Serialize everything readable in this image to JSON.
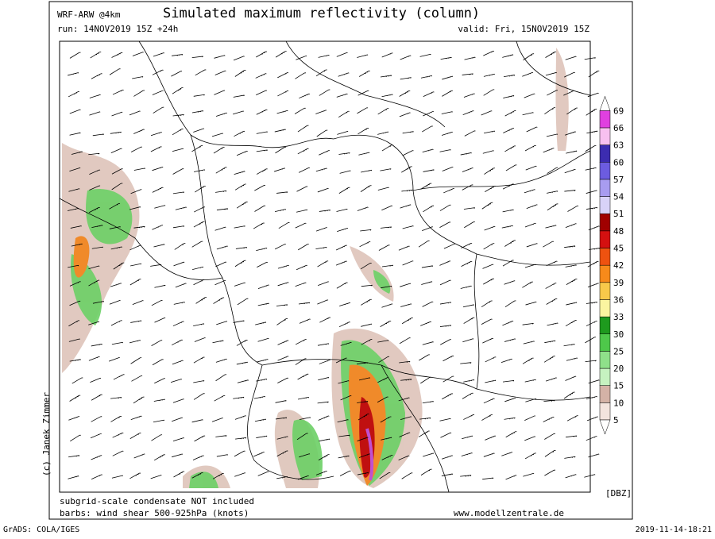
{
  "header": {
    "model": "WRF-ARW @4km",
    "title": "Simulated maximum reflectivity (column)",
    "run": "run: 14NOV2019 15Z +24h",
    "valid": "valid: Fri, 15NOV2019 15Z"
  },
  "colorbar": {
    "unit": "[DBZ]",
    "levels": [
      5,
      10,
      15,
      20,
      25,
      30,
      33,
      36,
      39,
      42,
      45,
      48,
      51,
      54,
      57,
      60,
      63,
      66,
      69
    ],
    "colors": [
      "#f3e4de",
      "#d4b2a6",
      "#c6f2c0",
      "#8fe08a",
      "#4ec84a",
      "#1e9a1e",
      "#fbf5a0",
      "#f8c94a",
      "#f78a1a",
      "#ee5210",
      "#d41010",
      "#a00000",
      "#d8d2f8",
      "#a89cf0",
      "#6c5ce0",
      "#3c2cb0",
      "#f8c0f0",
      "#e040e0"
    ],
    "top_color": "#a020a8"
  },
  "credit": "(c) Janek Zimmer",
  "footer": {
    "note1": "subgrid-scale condensate NOT included",
    "note2": "barbs: wind shear 500-925hPa (knots)",
    "url": "www.modellzentrale.de"
  },
  "bottom": {
    "left": "GrADS: COLA/IGES",
    "right": "2019-11-14-18:21"
  }
}
